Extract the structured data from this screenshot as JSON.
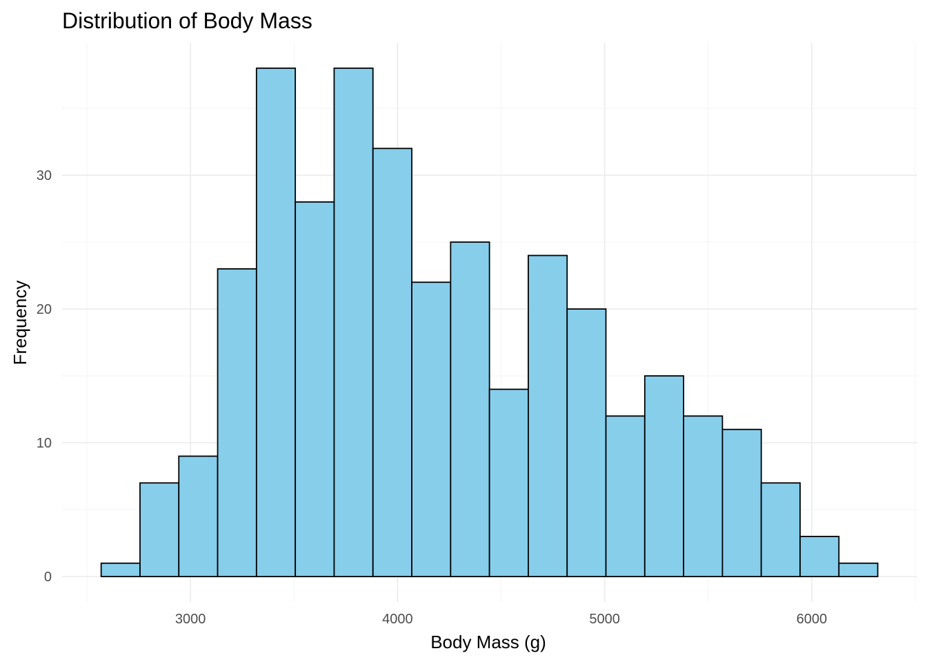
{
  "chart_data": {
    "type": "bar",
    "subtype": "histogram",
    "title": "Distribution of Body Mass",
    "xlabel": "Body Mass (g)",
    "ylabel": "Frequency",
    "bin_width": 187.5,
    "bins": [
      {
        "x0": 2568.75,
        "x1": 2756.25,
        "count": 1
      },
      {
        "x0": 2756.25,
        "x1": 2943.75,
        "count": 7
      },
      {
        "x0": 2943.75,
        "x1": 3131.25,
        "count": 9
      },
      {
        "x0": 3131.25,
        "x1": 3318.75,
        "count": 23
      },
      {
        "x0": 3318.75,
        "x1": 3506.25,
        "count": 38
      },
      {
        "x0": 3506.25,
        "x1": 3693.75,
        "count": 28
      },
      {
        "x0": 3693.75,
        "x1": 3881.25,
        "count": 38
      },
      {
        "x0": 3881.25,
        "x1": 4068.75,
        "count": 32
      },
      {
        "x0": 4068.75,
        "x1": 4256.25,
        "count": 22
      },
      {
        "x0": 4256.25,
        "x1": 4443.75,
        "count": 25
      },
      {
        "x0": 4443.75,
        "x1": 4631.25,
        "count": 14
      },
      {
        "x0": 4631.25,
        "x1": 4818.75,
        "count": 24
      },
      {
        "x0": 4818.75,
        "x1": 5006.25,
        "count": 20
      },
      {
        "x0": 5006.25,
        "x1": 5193.75,
        "count": 12
      },
      {
        "x0": 5193.75,
        "x1": 5381.25,
        "count": 15
      },
      {
        "x0": 5381.25,
        "x1": 5568.75,
        "count": 12
      },
      {
        "x0": 5568.75,
        "x1": 5756.25,
        "count": 11
      },
      {
        "x0": 5756.25,
        "x1": 5943.75,
        "count": 7
      },
      {
        "x0": 5943.75,
        "x1": 6131.25,
        "count": 3
      },
      {
        "x0": 6131.25,
        "x1": 6318.75,
        "count": 1
      }
    ],
    "xlim": [
      2380,
      6510
    ],
    "ylim": [
      -1.9,
      39.9
    ],
    "x_ticks": [
      {
        "value": 3000,
        "label": "3000"
      },
      {
        "value": 4000,
        "label": "4000"
      },
      {
        "value": 5000,
        "label": "5000"
      },
      {
        "value": 6000,
        "label": "6000"
      }
    ],
    "y_ticks": [
      {
        "value": 0,
        "label": "0"
      },
      {
        "value": 10,
        "label": "10"
      },
      {
        "value": 20,
        "label": "20"
      },
      {
        "value": 30,
        "label": "30"
      }
    ],
    "x_minor_ticks": [
      2500,
      3500,
      4500,
      5500,
      6500
    ],
    "y_minor_ticks": [
      5,
      15,
      25,
      35
    ],
    "grid": true,
    "legend": "none",
    "colors": {
      "bar_fill": "#87CEEB",
      "bar_stroke": "#000000",
      "grid_major": "#ebebeb",
      "grid_minor": "#f3f3f3",
      "tick_text": "#4d4d4d",
      "text": "#000000"
    }
  }
}
